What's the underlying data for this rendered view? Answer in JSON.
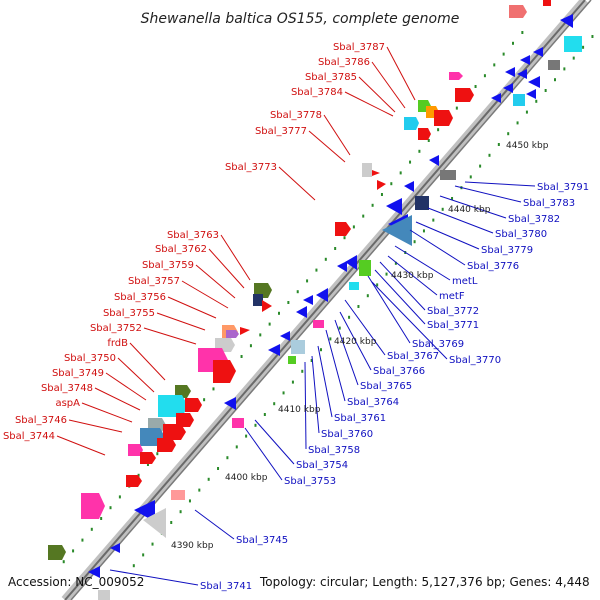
{
  "title": "Shewanella baltica OS155, complete genome",
  "footer": {
    "accession": "Accession: NC_009052",
    "topology": "Topology: circular; Length: 5,127,376 bp; Genes: 4,448"
  },
  "colors": {
    "backbone": "#888888",
    "forward_label": "#d01010",
    "reverse_label": "#1010c0",
    "tick_dot": "#2a8a2a"
  },
  "kbp_ticks": [
    "4390 kbp",
    "4400 kbp",
    "4410 kbp",
    "4420 kbp",
    "4430 kbp",
    "4440 kbp",
    "4450 kbp"
  ],
  "forward_labels": [
    "Sbal_3787",
    "Sbal_3786",
    "Sbal_3785",
    "Sbal_3784",
    "Sbal_3778",
    "Sbal_3777",
    "Sbal_3773",
    "Sbal_3763",
    "Sbal_3762",
    "Sbal_3759",
    "Sbal_3757",
    "Sbal_3756",
    "Sbal_3755",
    "Sbal_3752",
    "frdB",
    "Sbal_3750",
    "Sbal_3749",
    "Sbal_3748",
    "aspA",
    "Sbal_3746",
    "Sbal_3744"
  ],
  "reverse_labels": [
    "Sbal_3791",
    "Sbal_3783",
    "Sbal_3782",
    "Sbal_3780",
    "Sbal_3779",
    "Sbal_3776",
    "metL",
    "metF",
    "Sbal_3772",
    "Sbal_3771",
    "Sbal_3769",
    "Sbal_3770",
    "Sbal_3767",
    "Sbal_3766",
    "Sbal_3765",
    "Sbal_3764",
    "Sbal_3761",
    "Sbal_3760",
    "Sbal_3758",
    "Sbal_3754",
    "Sbal_3753",
    "Sbal_3745",
    "Sbal_3741"
  ]
}
